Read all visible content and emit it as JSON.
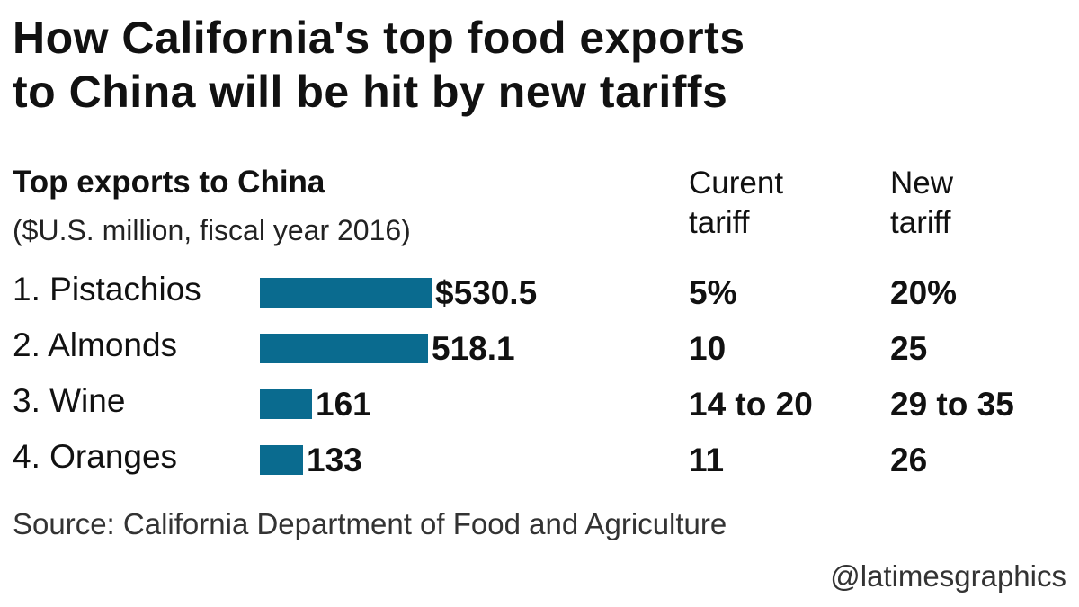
{
  "title_lines": [
    "How California's top food exports",
    "to China will be hit by new tariffs"
  ],
  "subtitle": "Top exports to China",
  "unit_note": "($U.S. million, fiscal year 2016)",
  "columns": {
    "current": [
      "Curent",
      "tariff"
    ],
    "new": [
      "New",
      "tariff"
    ]
  },
  "bar_color": "#0a6b8f",
  "chart_data": {
    "type": "bar",
    "orientation": "horizontal",
    "categories": [
      "1. Pistachios",
      "2. Almonds",
      "3. Wine",
      "4. Oranges"
    ],
    "values": [
      530.5,
      518.1,
      161,
      133
    ],
    "value_labels": [
      "$530.5",
      "518.1",
      "161",
      "133"
    ],
    "current_tariff": [
      "5%",
      "10",
      "14 to 20",
      "11"
    ],
    "new_tariff": [
      "20%",
      "25",
      "29 to 35",
      "26"
    ],
    "title": "How California's top food exports to China will be hit by new tariffs",
    "xlim": [
      0,
      530.5
    ]
  },
  "source": "Source: California Department of Food and Agriculture",
  "credit": "@latimesgraphics"
}
